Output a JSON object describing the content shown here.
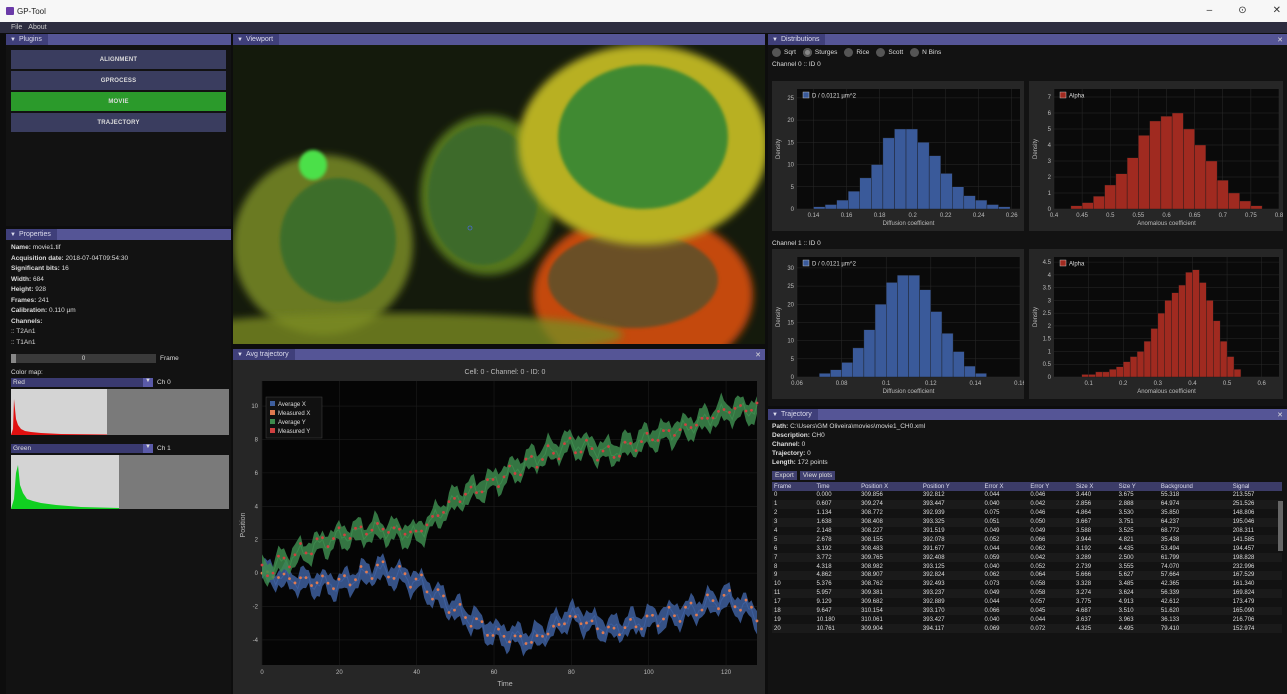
{
  "window": {
    "title": "GP-Tool",
    "minimize": "–",
    "restore": "⊙",
    "close": "✕"
  },
  "menu": [
    "File",
    "About"
  ],
  "plugins": {
    "title": "Plugins",
    "buttons": [
      {
        "label": "ALIGNMENT",
        "active": false
      },
      {
        "label": "GPROCESS",
        "active": false
      },
      {
        "label": "MOVIE",
        "active": true
      },
      {
        "label": "TRAJECTORY",
        "active": false
      }
    ]
  },
  "properties": {
    "title": "Properties",
    "name_label": "Name:",
    "name": "movie1.tif",
    "acq_label": "Acquisition date:",
    "acq": "2018-07-04T09:54:30",
    "bits_label": "Significant bits:",
    "bits": "16",
    "width_label": "Width:",
    "width": "684",
    "height_label": "Height:",
    "height": "928",
    "frames_label": "Frames:",
    "frames": "241",
    "cal_label": "Calibration:",
    "cal": "0.110 µm",
    "channels_label": "Channels:",
    "channels": [
      ":: T2An1",
      ":: T1An1"
    ],
    "frame_value": "0",
    "frame_label": "Frame",
    "colormap_label": "Color map:",
    "cm1": "Red",
    "ch1": "Ch 0",
    "cm2": "Green",
    "ch2": "Ch 1"
  },
  "viewport": {
    "title": "Viewport"
  },
  "avg": {
    "title": "Avg trajectory",
    "chart_title": "Cell: 0 - Channel: 0 - ID: 0",
    "legend": [
      "Average X",
      "Measured X",
      "Average Y",
      "Measured Y"
    ],
    "xlabel": "Time",
    "ylabel": "Position",
    "xticks": [
      "0",
      "20",
      "40",
      "60",
      "80",
      "100",
      "120"
    ],
    "yticks": [
      "10",
      "8",
      "6",
      "4",
      "2",
      "0",
      "-2",
      "-4"
    ]
  },
  "distributions": {
    "title": "Distributions",
    "radios": [
      {
        "label": "Sqrt",
        "on": false
      },
      {
        "label": "Sturges",
        "on": true
      },
      {
        "label": "Rice",
        "on": false
      },
      {
        "label": "Scott",
        "on": false
      },
      {
        "label": "N Bins",
        "on": false
      }
    ],
    "ch0": "Channel 0 :: ID 0",
    "ch1": "Channel 1 :: ID 0",
    "density": "Density",
    "d_legend": "D / 0.0121 µm^2",
    "a_legend": "Alpha",
    "d_xlabel": "Diffusion coefficient",
    "a_xlabel": "Anomalous coefficient"
  },
  "trajectory": {
    "title": "Trajectory",
    "path_label": "Path:",
    "path": "C:\\Users\\GM Oliveira\\movies\\movie1_CH0.xml",
    "desc_label": "Description:",
    "desc": "CH0",
    "chan_label": "Channel:",
    "chan": "0",
    "traj_label": "Trajectory:",
    "traj": "0",
    "len_label": "Length:",
    "len": "172 points",
    "export": "Export",
    "view": "View plots",
    "columns": [
      "Frame",
      "Time",
      "Position X",
      "Position Y",
      "Error X",
      "Error Y",
      "Size X",
      "Size Y",
      "Background",
      "Signal"
    ],
    "rows": [
      [
        "0",
        "0.000",
        "309.856",
        "392.812",
        "0.044",
        "0.046",
        "3.440",
        "3.675",
        "55.318",
        "213.557"
      ],
      [
        "1",
        "0.607",
        "309.274",
        "393.447",
        "0.040",
        "0.042",
        "2.856",
        "2.888",
        "64.974",
        "251.526"
      ],
      [
        "2",
        "1.134",
        "308.772",
        "392.939",
        "0.075",
        "0.046",
        "4.864",
        "3.530",
        "35.850",
        "148.806"
      ],
      [
        "3",
        "1.638",
        "308.408",
        "393.325",
        "0.051",
        "0.050",
        "3.667",
        "3.751",
        "64.237",
        "195.046"
      ],
      [
        "4",
        "2.148",
        "308.227",
        "391.519",
        "0.049",
        "0.049",
        "3.588",
        "3.525",
        "68.772",
        "208.311"
      ],
      [
        "5",
        "2.678",
        "308.155",
        "392.078",
        "0.052",
        "0.066",
        "3.944",
        "4.821",
        "35.438",
        "141.585"
      ],
      [
        "6",
        "3.192",
        "308.483",
        "391.677",
        "0.044",
        "0.062",
        "3.192",
        "4.435",
        "53.494",
        "194.457"
      ],
      [
        "7",
        "3.772",
        "309.765",
        "392.408",
        "0.059",
        "0.042",
        "3.289",
        "2.500",
        "61.799",
        "198.828"
      ],
      [
        "8",
        "4.318",
        "308.982",
        "393.125",
        "0.040",
        "0.052",
        "2.739",
        "3.555",
        "74.070",
        "232.996"
      ],
      [
        "9",
        "4.862",
        "308.907",
        "392.824",
        "0.062",
        "0.064",
        "5.666",
        "5.627",
        "57.664",
        "167.529"
      ],
      [
        "10",
        "5.376",
        "308.762",
        "392.493",
        "0.073",
        "0.058",
        "3.328",
        "3.485",
        "42.365",
        "161.340"
      ],
      [
        "11",
        "5.957",
        "309.381",
        "393.237",
        "0.049",
        "0.058",
        "3.274",
        "3.624",
        "56.339",
        "169.824"
      ],
      [
        "17",
        "9.129",
        "309.682",
        "392.889",
        "0.044",
        "0.057",
        "3.775",
        "4.913",
        "42.612",
        "173.479"
      ],
      [
        "18",
        "9.647",
        "310.154",
        "393.170",
        "0.066",
        "0.045",
        "4.687",
        "3.510",
        "51.620",
        "165.090"
      ],
      [
        "19",
        "10.180",
        "310.061",
        "393.427",
        "0.040",
        "0.044",
        "3.637",
        "3.963",
        "36.133",
        "216.706"
      ],
      [
        "20",
        "10.761",
        "309.904",
        "394.117",
        "0.069",
        "0.072",
        "4.325",
        "4.495",
        "79.410",
        "152.974"
      ]
    ]
  },
  "chart_data": [
    {
      "type": "bar",
      "title": "",
      "legend": "D / 0.0121 µm^2",
      "xlabel": "Diffusion coefficient",
      "ylabel": "Density",
      "xlim": [
        0.13,
        0.265
      ],
      "ylim": [
        0,
        27
      ],
      "xticks": [
        0.14,
        0.16,
        0.18,
        0.2,
        0.22,
        0.24,
        0.26
      ],
      "yticks": [
        0,
        5,
        10,
        15,
        20,
        25
      ],
      "bin_left": [
        0.14,
        0.147,
        0.154,
        0.161,
        0.168,
        0.175,
        0.182,
        0.189,
        0.196,
        0.203,
        0.21,
        0.217,
        0.224,
        0.231,
        0.238,
        0.245,
        0.252
      ],
      "bin_width": 0.007,
      "values": [
        0.5,
        1,
        2,
        4,
        7,
        10,
        16,
        18,
        18,
        15,
        12,
        8,
        5,
        3,
        2,
        1,
        0.5
      ],
      "color": "#3a5a9a"
    },
    {
      "type": "bar",
      "title": "",
      "legend": "Alpha",
      "xlabel": "Anomalous coefficient",
      "ylabel": "Density",
      "xlim": [
        0.4,
        0.8
      ],
      "ylim": [
        0,
        7.5
      ],
      "xticks": [
        0.4,
        0.45,
        0.5,
        0.55,
        0.6,
        0.65,
        0.7,
        0.75,
        0.8
      ],
      "yticks": [
        0,
        1,
        2,
        3,
        4,
        5,
        6,
        7
      ],
      "bin_left": [
        0.43,
        0.45,
        0.47,
        0.49,
        0.51,
        0.53,
        0.55,
        0.57,
        0.59,
        0.61,
        0.63,
        0.65,
        0.67,
        0.69,
        0.71,
        0.73,
        0.75
      ],
      "bin_width": 0.02,
      "values": [
        0.2,
        0.4,
        0.8,
        1.5,
        2.2,
        3.2,
        4.6,
        5.5,
        5.8,
        6.0,
        5.0,
        4.0,
        3.0,
        1.8,
        1.0,
        0.5,
        0.2
      ],
      "color": "#a02a20"
    },
    {
      "type": "bar",
      "title": "",
      "legend": "D / 0.0121 µm^2",
      "xlabel": "Diffusion coefficient",
      "ylabel": "Density",
      "xlim": [
        0.06,
        0.16
      ],
      "ylim": [
        0,
        33
      ],
      "xticks": [
        0.06,
        0.08,
        0.1,
        0.12,
        0.14,
        0.16
      ],
      "yticks": [
        0,
        5,
        10,
        15,
        20,
        25,
        30
      ],
      "bin_left": [
        0.07,
        0.075,
        0.08,
        0.085,
        0.09,
        0.095,
        0.1,
        0.105,
        0.11,
        0.115,
        0.12,
        0.125,
        0.13,
        0.135,
        0.14
      ],
      "bin_width": 0.005,
      "values": [
        1,
        2,
        4,
        8,
        13,
        20,
        26,
        28,
        28,
        24,
        18,
        12,
        7,
        3,
        1
      ],
      "color": "#3a5a9a"
    },
    {
      "type": "bar",
      "title": "",
      "legend": "Alpha",
      "xlabel": "Anomalous coefficient",
      "ylabel": "Density",
      "xlim": [
        0.0,
        0.65
      ],
      "ylim": [
        0,
        4.7
      ],
      "xticks": [
        0.1,
        0.2,
        0.3,
        0.4,
        0.5,
        0.6
      ],
      "yticks": [
        0,
        0.5,
        1,
        1.5,
        2,
        2.5,
        3,
        3.5,
        4,
        4.5
      ],
      "bin_left": [
        0.08,
        0.1,
        0.12,
        0.14,
        0.16,
        0.18,
        0.2,
        0.22,
        0.24,
        0.26,
        0.28,
        0.3,
        0.32,
        0.34,
        0.36,
        0.38,
        0.4,
        0.42,
        0.44,
        0.46,
        0.48,
        0.5,
        0.52
      ],
      "bin_width": 0.02,
      "values": [
        0.1,
        0.1,
        0.2,
        0.2,
        0.3,
        0.4,
        0.6,
        0.8,
        1.0,
        1.4,
        1.9,
        2.5,
        3.0,
        3.3,
        3.6,
        4.1,
        4.2,
        3.7,
        3.0,
        2.2,
        1.4,
        0.8,
        0.3
      ],
      "color": "#a02a20"
    },
    {
      "type": "line",
      "title": "Cell: 0 - Channel: 0 - ID: 0",
      "xlabel": "Time",
      "ylabel": "Position",
      "xlim": [
        0,
        128
      ],
      "ylim": [
        -5.5,
        11.5
      ],
      "series": [
        {
          "name": "Average X",
          "color": "#3e5f9e",
          "x": [
            0,
            10,
            20,
            30,
            40,
            50,
            60,
            70,
            80,
            90,
            100,
            110,
            120,
            128
          ],
          "y": [
            0,
            -0.5,
            -0.7,
            0.2,
            -0.5,
            -2.2,
            -3.6,
            -4.0,
            -2.5,
            -3.4,
            -2.8,
            -2.3,
            -1.5,
            -2.5
          ]
        },
        {
          "name": "Average Y",
          "color": "#3d8a4d",
          "x": [
            0,
            10,
            20,
            30,
            40,
            50,
            60,
            70,
            80,
            90,
            100,
            110,
            120,
            128
          ],
          "y": [
            0,
            1.2,
            2.2,
            2.6,
            2.3,
            4.4,
            5.5,
            6.8,
            7.8,
            7.2,
            8.1,
            8.7,
            9.7,
            9.8
          ]
        }
      ]
    }
  ]
}
